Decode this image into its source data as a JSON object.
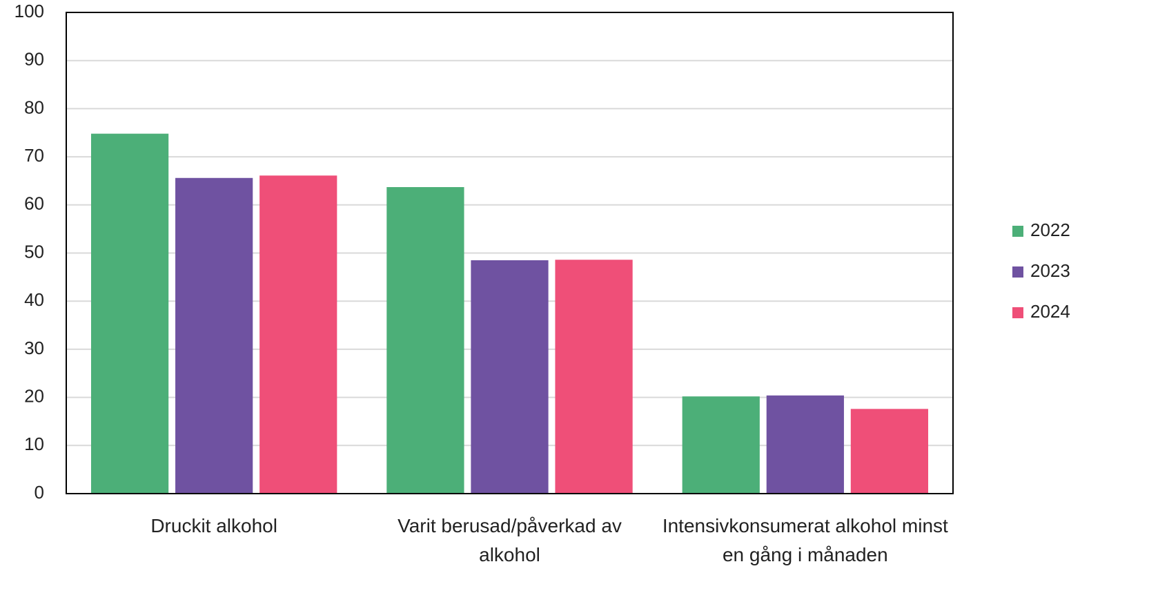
{
  "chart_data": {
    "type": "bar",
    "categories": [
      "Druckit alkohol",
      "Varit berusad/påverkad av alkohol",
      "Intensivkonsumerat alkohol minst en gång i månaden"
    ],
    "series": [
      {
        "name": "2022",
        "color": "#4caf78",
        "values": [
          74.8,
          63.7,
          20.2
        ]
      },
      {
        "name": "2023",
        "color": "#6f52a1",
        "values": [
          65.6,
          48.5,
          20.4
        ]
      },
      {
        "name": "2024",
        "color": "#ef4f78",
        "values": [
          66.1,
          48.6,
          17.6
        ]
      }
    ],
    "ylim": [
      0,
      100
    ],
    "yticks": [
      0,
      10,
      20,
      30,
      40,
      50,
      60,
      70,
      80,
      90,
      100
    ],
    "grid": true,
    "legend": "right"
  }
}
